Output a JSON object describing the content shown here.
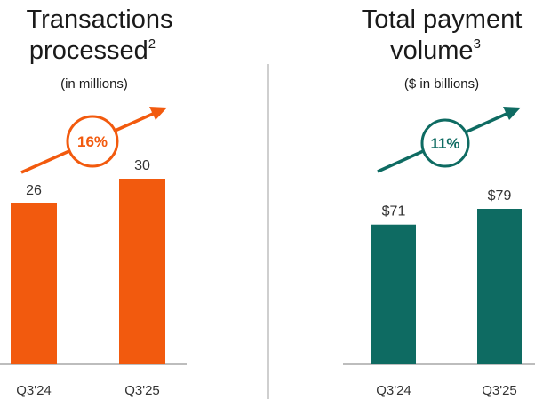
{
  "colors": {
    "left_accent": "#F25A0E",
    "right_accent": "#0E6B62",
    "divider": "#CFCFCF",
    "baseline": "#BDBDBD"
  },
  "chart_data": [
    {
      "type": "bar",
      "title": "Transactions processed",
      "title_superscript": "2",
      "subtitle": "(in millions)",
      "categories": [
        "Q3'24",
        "Q3'25"
      ],
      "values": [
        26,
        30
      ],
      "value_labels": [
        "26",
        "30"
      ],
      "growth_label": "16%",
      "color": "#F25A0E"
    },
    {
      "type": "bar",
      "title": "Total payment volume",
      "title_superscript": "3",
      "subtitle": "($ in billions)",
      "categories": [
        "Q3'24",
        "Q3'25"
      ],
      "values": [
        71,
        79
      ],
      "value_labels": [
        "$71",
        "$79"
      ],
      "growth_label": "11%",
      "color": "#0E6B62"
    }
  ]
}
